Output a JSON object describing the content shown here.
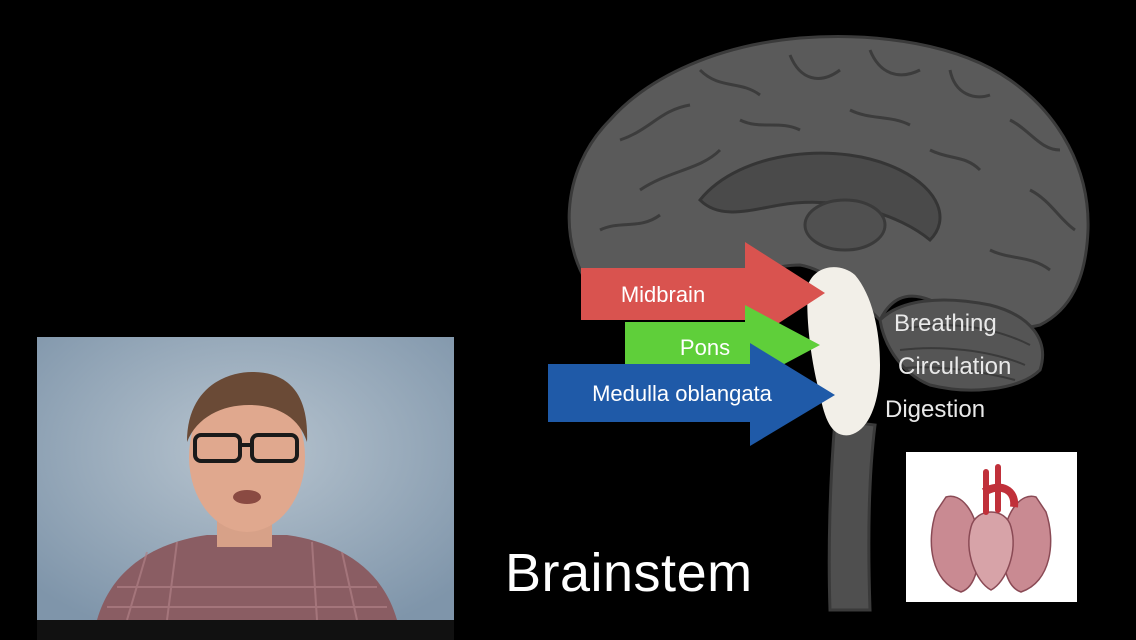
{
  "slide": {
    "title": "Brainstem",
    "regions": [
      {
        "label": "Midbrain",
        "color": "#d9534f"
      },
      {
        "label": "Pons",
        "color": "#5fcf3a"
      },
      {
        "label": "Medulla oblangata",
        "color": "#1f5aa8"
      }
    ],
    "functions": [
      "Breathing",
      "Circulation",
      "Digestion"
    ]
  },
  "colors": {
    "background": "#000000",
    "brain": "#5a5a5a",
    "brainstem_highlight": "#f2efe8"
  },
  "icons": {
    "brain": "sagittal-brain-illustration",
    "presenter": "presenter-video",
    "heart": "heart-lungs-illustration"
  }
}
